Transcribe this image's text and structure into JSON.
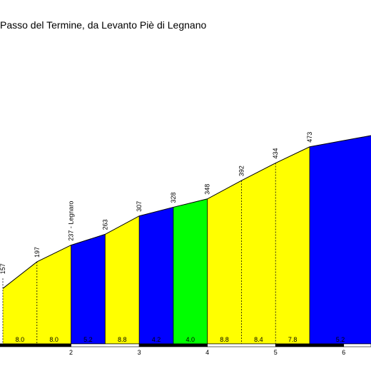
{
  "chart_data": {
    "type": "area",
    "title": "Passo del Termine, da Levanto Piè di Legnano",
    "xlabel": "",
    "ylabel": "",
    "x_unit": "km",
    "xlim": [
      1.0,
      6.4
    ],
    "ylim": [
      0,
      500
    ],
    "x_ticks": [
      "2",
      "3",
      "4",
      "5",
      "6"
    ],
    "x_tick_values": [
      2,
      3,
      4,
      5,
      6
    ],
    "points": [
      {
        "x": 1.0,
        "y": 133,
        "label": ""
      },
      {
        "x": 1.0,
        "y": 157,
        "label": "157"
      },
      {
        "x": 1.5,
        "y": 197,
        "label": "197"
      },
      {
        "x": 2.0,
        "y": 237,
        "label": "237 - Legnaro"
      },
      {
        "x": 2.5,
        "y": 263,
        "label": "263"
      },
      {
        "x": 3.0,
        "y": 307,
        "label": "307"
      },
      {
        "x": 3.5,
        "y": 328,
        "label": "328"
      },
      {
        "x": 4.0,
        "y": 348,
        "label": "348"
      },
      {
        "x": 4.5,
        "y": 392,
        "label": "392"
      },
      {
        "x": 5.0,
        "y": 434,
        "label": "434"
      },
      {
        "x": 5.5,
        "y": 473,
        "label": "473"
      },
      {
        "x": 6.4,
        "y": 500,
        "label": ""
      }
    ],
    "segments": [
      {
        "grade": "8.0",
        "color": "#ffff00"
      },
      {
        "grade": "8.0",
        "color": "#ffff00"
      },
      {
        "grade": "5.2",
        "color": "#0000ff"
      },
      {
        "grade": "8.8",
        "color": "#ffff00"
      },
      {
        "grade": "4.2",
        "color": "#0000ff"
      },
      {
        "grade": "4.0",
        "color": "#00ff00"
      },
      {
        "grade": "8.8",
        "color": "#ffff00"
      },
      {
        "grade": "8.4",
        "color": "#ffff00"
      },
      {
        "grade": "7.8",
        "color": "#ffff00"
      },
      {
        "grade": "5.2",
        "color": "#0000ff"
      }
    ],
    "grid": false,
    "legend": "none"
  }
}
